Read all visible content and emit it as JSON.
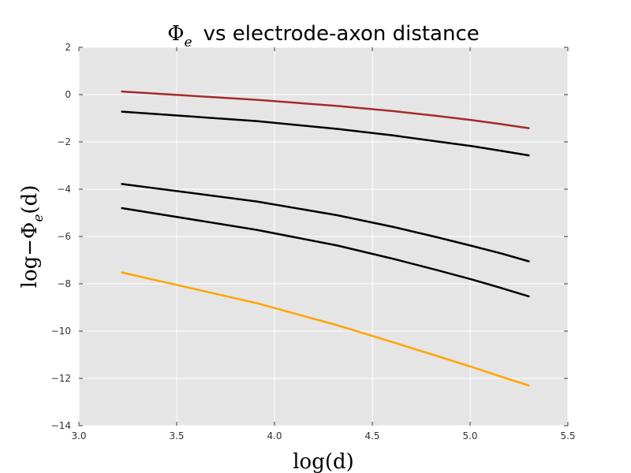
{
  "chart_data": {
    "type": "line",
    "title": {
      "symbol": "Φ",
      "subscript": "e",
      "text": "vs electrode-axon distance"
    },
    "xlabel": "log(d)",
    "ylabel": {
      "prefix": "log",
      "minus": "−",
      "symbol": "Φ",
      "subscript": "e",
      "suffix": "(d)"
    },
    "xlim": [
      3.0,
      5.5
    ],
    "ylim": [
      -14,
      2
    ],
    "xticks": [
      3.0,
      3.5,
      4.0,
      4.5,
      5.0,
      5.5
    ],
    "xtick_labels": [
      "3.0",
      "3.5",
      "4.0",
      "4.5",
      "5.0",
      "5.5"
    ],
    "yticks": [
      2,
      0,
      -2,
      -4,
      -6,
      -8,
      -10,
      -12,
      -14
    ],
    "ytick_labels": [
      "2",
      "0",
      "−2",
      "−4",
      "−6",
      "−8",
      "−10",
      "−12",
      "−14"
    ],
    "grid": true,
    "background": "#e5e5e5",
    "x": [
      3.22,
      3.91,
      4.32,
      4.61,
      4.83,
      5.01,
      5.16,
      5.3
    ],
    "series": [
      {
        "color": "#a52a2a",
        "values": [
          0.13,
          -0.22,
          -0.48,
          -0.7,
          -0.9,
          -1.08,
          -1.25,
          -1.42
        ]
      },
      {
        "color": "#000000",
        "values": [
          -0.72,
          -1.12,
          -1.45,
          -1.73,
          -1.98,
          -2.18,
          -2.38,
          -2.57
        ]
      },
      {
        "color": "#000000",
        "values": [
          -3.78,
          -4.52,
          -5.1,
          -5.6,
          -6.03,
          -6.4,
          -6.72,
          -7.05
        ]
      },
      {
        "color": "#000000",
        "values": [
          -4.8,
          -5.72,
          -6.38,
          -6.95,
          -7.42,
          -7.82,
          -8.18,
          -8.53
        ]
      },
      {
        "color": "#ffa500",
        "values": [
          -7.52,
          -8.82,
          -9.75,
          -10.48,
          -11.05,
          -11.52,
          -11.93,
          -12.3
        ]
      }
    ]
  }
}
